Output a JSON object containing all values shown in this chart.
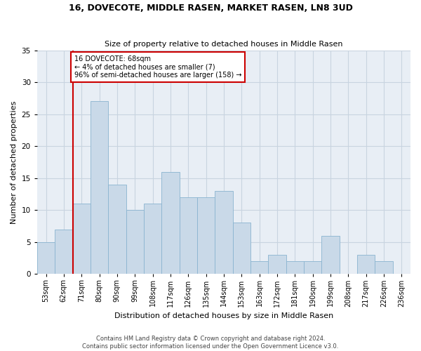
{
  "title": "16, DOVECOTE, MIDDLE RASEN, MARKET RASEN, LN8 3UD",
  "subtitle": "Size of property relative to detached houses in Middle Rasen",
  "xlabel": "Distribution of detached houses by size in Middle Rasen",
  "ylabel": "Number of detached properties",
  "bin_labels": [
    "53sqm",
    "62sqm",
    "71sqm",
    "80sqm",
    "90sqm",
    "99sqm",
    "108sqm",
    "117sqm",
    "126sqm",
    "135sqm",
    "144sqm",
    "153sqm",
    "163sqm",
    "172sqm",
    "181sqm",
    "190sqm",
    "199sqm",
    "208sqm",
    "217sqm",
    "226sqm",
    "236sqm"
  ],
  "bar_values": [
    5,
    7,
    11,
    27,
    14,
    10,
    11,
    16,
    12,
    12,
    13,
    8,
    2,
    3,
    2,
    2,
    6,
    0,
    3,
    2,
    0
  ],
  "bar_color": "#c9d9e8",
  "bar_edge_color": "#8ab4d0",
  "grid_color": "#c8d4e0",
  "background_color": "#e8eef5",
  "vline_color": "#cc0000",
  "annotation_text": "16 DOVECOTE: 68sqm\n← 4% of detached houses are smaller (7)\n96% of semi-detached houses are larger (158) →",
  "annotation_box_color": "white",
  "annotation_box_edge": "#cc0000",
  "ylim": [
    0,
    35
  ],
  "yticks": [
    0,
    5,
    10,
    15,
    20,
    25,
    30,
    35
  ],
  "footer1": "Contains HM Land Registry data © Crown copyright and database right 2024.",
  "footer2": "Contains public sector information licensed under the Open Government Licence v3.0."
}
